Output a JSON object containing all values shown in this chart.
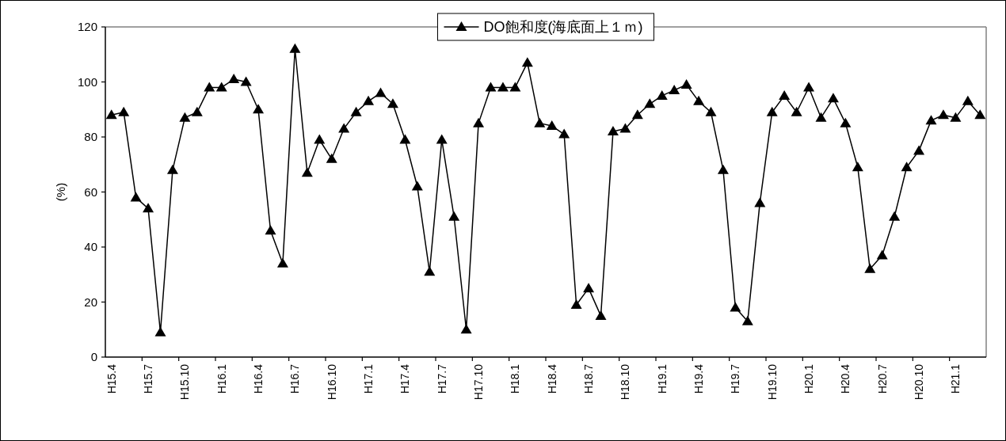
{
  "chart_data": {
    "type": "line",
    "ylabel": "(%)",
    "categories": [
      "H15.4",
      null,
      null,
      "H15.7",
      null,
      null,
      "H15.10",
      null,
      null,
      "H16.1",
      null,
      null,
      "H16.4",
      null,
      null,
      "H16.7",
      null,
      null,
      "H16.10",
      null,
      null,
      "H17.1",
      null,
      null,
      "H17.4",
      null,
      null,
      "H17.7",
      null,
      null,
      "H17.10",
      null,
      null,
      "H18.1",
      null,
      null,
      "H18.4",
      null,
      null,
      "H18.7",
      null,
      null,
      "H18.10",
      null,
      null,
      "H19.1",
      null,
      null,
      "H19.4",
      null,
      null,
      "H19.7",
      null,
      null,
      "H19.10",
      null,
      null,
      "H20.1",
      null,
      null,
      "H20.4",
      null,
      null,
      "H20.7",
      null,
      null,
      "H20.10",
      null,
      null,
      "H21.1",
      null,
      null
    ],
    "series": [
      {
        "name": "DO飽和度(海底面上１ｍ)",
        "color": "#000000",
        "values": [
          88,
          89,
          58,
          54,
          9,
          68,
          87,
          89,
          98,
          98,
          101,
          100,
          90,
          46,
          34,
          112,
          67,
          79,
          72,
          83,
          89,
          93,
          96,
          92,
          79,
          62,
          31,
          79,
          51,
          10,
          85,
          98,
          98,
          98,
          107,
          85,
          84,
          81,
          19,
          25,
          15,
          82,
          83,
          88,
          92,
          95,
          97,
          99,
          93,
          89,
          68,
          18,
          13,
          56,
          89,
          95,
          89,
          98,
          87,
          94,
          85,
          69,
          32,
          37,
          51,
          69,
          75,
          86,
          88,
          87,
          93,
          88
        ]
      }
    ],
    "ylim": [
      0,
      120
    ],
    "yticks": [
      0,
      20,
      40,
      60,
      80,
      100,
      120
    ],
    "marker": "triangle",
    "line_style": "solid",
    "grid": false,
    "legend": "top"
  }
}
